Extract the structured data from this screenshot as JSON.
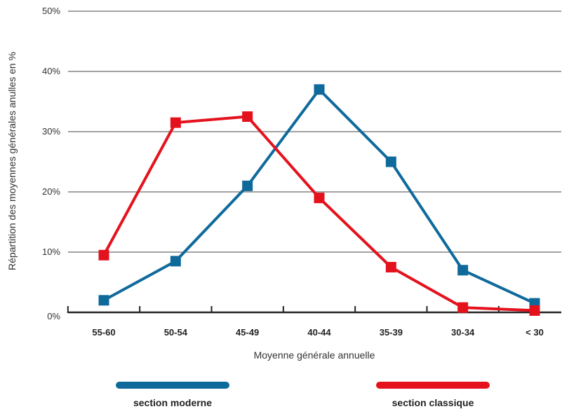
{
  "chart_data": {
    "type": "line",
    "xlabel": "Moyenne générale annuelle",
    "ylabel": "Répartition des moyennes générales anulles en %",
    "categories": [
      "55-60",
      "50-54",
      "45-49",
      "40-44",
      "35-39",
      "30-34",
      "< 30"
    ],
    "yticks": [
      "0%",
      "10%",
      "20%",
      "30%",
      "40%",
      "50%"
    ],
    "ylim": [
      0,
      50
    ],
    "grid": true,
    "legend_position": "bottom",
    "series": [
      {
        "name": "section moderne",
        "color": "#0f6a9c",
        "values": [
          2,
          8.5,
          21,
          37,
          25,
          7,
          1.5
        ]
      },
      {
        "name": "section classique",
        "color": "#e4121d",
        "values": [
          9.5,
          31.5,
          32.5,
          19,
          7.5,
          0.8,
          0.3
        ]
      }
    ]
  }
}
